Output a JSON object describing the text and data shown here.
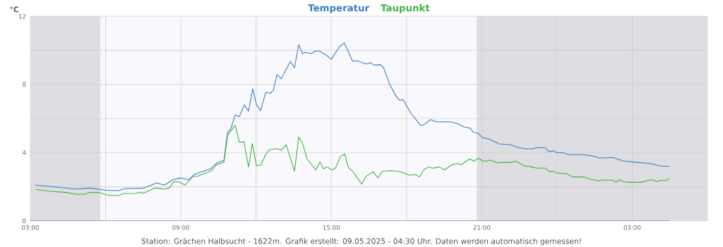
{
  "chart_data": {
    "type": "line",
    "ylabel": "°C",
    "xlim": [
      "2025-05-08T03:00",
      "2025-05-09T06:00"
    ],
    "ylim": [
      0,
      12
    ],
    "xticks": [
      {
        "value": "2025-05-08T03:00",
        "label": "03:00"
      },
      {
        "value": "2025-05-08T06:00",
        "label": null
      },
      {
        "value": "2025-05-08T09:00",
        "label": "09:00"
      },
      {
        "value": "2025-05-08T12:00",
        "label": null
      },
      {
        "value": "2025-05-08T15:00",
        "label": "15:00"
      },
      {
        "value": "2025-05-08T18:00",
        "label": null
      },
      {
        "value": "2025-05-08T21:00",
        "label": "21:00"
      },
      {
        "value": "2025-05-09T00:00",
        "label": null
      },
      {
        "value": "2025-05-09T03:00",
        "label": "03:00"
      }
    ],
    "yticks": [
      0,
      {
        "value": 2,
        "label": null
      },
      4,
      {
        "value": 6,
        "label": null
      },
      8,
      {
        "value": 10,
        "label": null
      },
      12
    ],
    "grid": true,
    "legend": "top",
    "marker": "none",
    "line_style": "solid",
    "bands": [
      {
        "axis": "x",
        "from": "2025-05-08T03:00",
        "to": "2025-05-08T05:48",
        "color": "#dedee2"
      },
      {
        "axis": "x",
        "from": "2025-05-08T05:48",
        "to": "2025-05-08T20:48",
        "color": "#f9f8fd"
      },
      {
        "axis": "x",
        "from": "2025-05-08T20:48",
        "to": "2025-05-09T06:00",
        "color": "#dedee2"
      }
    ],
    "series": [
      {
        "name": "Temperatur",
        "color": "#3a7ebf",
        "x": [
          "2025-05-08T03:12",
          "2025-05-08T04:02",
          "2025-05-08T04:48",
          "2025-05-08T05:22",
          "2025-05-08T06:06",
          "2025-05-08T06:31",
          "2025-05-08T06:46",
          "2025-05-08T07:31",
          "2025-05-08T08:02",
          "2025-05-08T08:21",
          "2025-05-08T08:41",
          "2025-05-08T09:00",
          "2025-05-08T09:19",
          "2025-05-08T09:32",
          "2025-05-08T10:11",
          "2025-05-08T10:26",
          "2025-05-08T10:43",
          "2025-05-08T10:52",
          "2025-05-08T11:00",
          "2025-05-08T11:10",
          "2025-05-08T11:20",
          "2025-05-08T11:32",
          "2025-05-08T11:42",
          "2025-05-08T11:52",
          "2025-05-08T12:01",
          "2025-05-08T12:11",
          "2025-05-08T12:23",
          "2025-05-08T12:33",
          "2025-05-08T12:41",
          "2025-05-08T12:50",
          "2025-05-08T13:00",
          "2025-05-08T13:22",
          "2025-05-08T13:32",
          "2025-05-08T13:42",
          "2025-05-08T13:51",
          "2025-05-08T13:59",
          "2025-05-08T14:11",
          "2025-05-08T14:23",
          "2025-05-08T14:31",
          "2025-05-08T14:50",
          "2025-05-08T15:00",
          "2025-05-08T15:20",
          "2025-05-08T15:31",
          "2025-05-08T15:51",
          "2025-05-08T16:01",
          "2025-05-08T16:23",
          "2025-05-08T16:33",
          "2025-05-08T16:43",
          "2025-05-08T16:58",
          "2025-05-08T17:05",
          "2025-05-08T17:20",
          "2025-05-08T17:34",
          "2025-05-08T17:42",
          "2025-05-08T17:52",
          "2025-05-08T18:11",
          "2025-05-08T18:33",
          "2025-05-08T18:40",
          "2025-05-08T18:58",
          "2025-05-08T19:12",
          "2025-05-08T19:46",
          "2025-05-08T20:01",
          "2025-05-08T20:18",
          "2025-05-08T20:33",
          "2025-05-08T20:40",
          "2025-05-08T20:50",
          "2025-05-08T21:02",
          "2025-05-08T21:19",
          "2025-05-08T21:42",
          "2025-05-08T22:08",
          "2025-05-08T22:29",
          "2025-05-08T22:46",
          "2025-05-08T23:04",
          "2025-05-08T23:08",
          "2025-05-08T23:32",
          "2025-05-08T23:41",
          "2025-05-08T23:51",
          "2025-05-08T23:59",
          "2025-05-09T00:14",
          "2025-05-09T00:28",
          "2025-05-09T01:05",
          "2025-05-09T01:31",
          "2025-05-09T01:41",
          "2025-05-09T02:14",
          "2025-05-09T02:38",
          "2025-05-09T03:12",
          "2025-05-09T03:42",
          "2025-05-09T04:11",
          "2025-05-09T04:29"
        ],
        "values": [
          2.1,
          1.99,
          1.86,
          1.93,
          1.78,
          1.78,
          1.89,
          1.92,
          2.22,
          2.1,
          2.41,
          2.52,
          2.4,
          2.72,
          3.05,
          3.4,
          3.55,
          5.2,
          5.43,
          6.22,
          6.12,
          6.81,
          6.43,
          7.75,
          6.81,
          6.47,
          7.54,
          7.48,
          7.64,
          8.58,
          8.33,
          9.34,
          8.98,
          10.33,
          9.81,
          9.88,
          9.81,
          9.96,
          9.96,
          9.68,
          9.47,
          10.22,
          10.44,
          9.36,
          9.39,
          9.2,
          9.27,
          9.13,
          9.16,
          8.98,
          7.99,
          7.36,
          7.09,
          7.1,
          6.3,
          5.61,
          5.61,
          5.94,
          5.8,
          5.8,
          5.71,
          5.5,
          5.43,
          5.18,
          5.16,
          4.88,
          4.79,
          4.51,
          4.47,
          4.29,
          4.22,
          4.22,
          4.29,
          4.29,
          4.05,
          4.12,
          4.0,
          3.99,
          3.88,
          3.88,
          3.78,
          3.68,
          3.71,
          3.52,
          3.43,
          3.36,
          3.21,
          3.21
        ]
      },
      {
        "name": "Taupunkt",
        "color": "#3cb43c",
        "x": [
          "2025-05-08T03:12",
          "2025-05-08T03:46",
          "2025-05-08T04:25",
          "2025-05-08T04:48",
          "2025-05-08T05:10",
          "2025-05-08T05:22",
          "2025-05-08T05:44",
          "2025-05-08T06:09",
          "2025-05-08T06:31",
          "2025-05-08T06:43",
          "2025-05-08T07:12",
          "2025-05-08T07:22",
          "2025-05-08T07:31",
          "2025-05-08T07:59",
          "2025-05-08T08:21",
          "2025-05-08T08:33",
          "2025-05-08T08:43",
          "2025-05-08T08:55",
          "2025-05-08T09:10",
          "2025-05-08T09:29",
          "2025-05-08T09:41",
          "2025-05-08T10:14",
          "2025-05-08T10:26",
          "2025-05-08T10:43",
          "2025-05-08T10:52",
          "2025-05-08T11:10",
          "2025-05-08T11:20",
          "2025-05-08T11:31",
          "2025-05-08T11:42",
          "2025-05-08T11:51",
          "2025-05-08T12:01",
          "2025-05-08T12:11",
          "2025-05-08T12:25",
          "2025-05-08T12:33",
          "2025-05-08T12:50",
          "2025-05-08T13:00",
          "2025-05-08T13:12",
          "2025-05-08T13:32",
          "2025-05-08T13:42",
          "2025-05-08T13:51",
          "2025-05-08T14:02",
          "2025-05-08T14:23",
          "2025-05-08T14:33",
          "2025-05-08T14:41",
          "2025-05-08T14:50",
          "2025-05-08T15:02",
          "2025-05-08T15:10",
          "2025-05-08T15:22",
          "2025-05-08T15:32",
          "2025-05-08T15:41",
          "2025-05-08T15:52",
          "2025-05-08T16:13",
          "2025-05-08T16:23",
          "2025-05-08T16:40",
          "2025-05-08T16:52",
          "2025-05-08T17:02",
          "2025-05-08T17:22",
          "2025-05-08T17:34",
          "2025-05-08T17:42",
          "2025-05-08T18:08",
          "2025-05-08T18:21",
          "2025-05-08T18:31",
          "2025-05-08T18:41",
          "2025-05-08T18:53",
          "2025-05-08T19:02",
          "2025-05-08T19:19",
          "2025-05-08T19:31",
          "2025-05-08T19:49",
          "2025-05-08T20:02",
          "2025-05-08T20:11",
          "2025-05-08T20:31",
          "2025-05-08T20:41",
          "2025-05-08T20:52",
          "2025-05-08T21:02",
          "2025-05-08T21:10",
          "2025-05-08T21:20",
          "2025-05-08T21:39",
          "2025-05-08T21:47",
          "2025-05-08T22:09",
          "2025-05-08T22:21",
          "2025-05-08T22:37",
          "2025-05-08T22:41",
          "2025-05-08T23:00",
          "2025-05-08T23:12",
          "2025-05-08T23:32",
          "2025-05-08T23:42",
          "2025-05-08T23:51",
          "2025-05-08T23:59",
          "2025-05-09T00:23",
          "2025-05-09T00:37",
          "2025-05-09T01:05",
          "2025-05-09T01:22",
          "2025-05-09T01:39",
          "2025-05-09T01:49",
          "2025-05-09T02:13",
          "2025-05-09T02:21",
          "2025-05-09T02:29",
          "2025-05-09T02:38",
          "2025-05-09T02:55",
          "2025-05-09T03:20",
          "2025-05-09T03:42",
          "2025-05-09T03:51",
          "2025-05-09T03:59",
          "2025-05-09T04:08",
          "2025-05-09T04:21",
          "2025-05-09T04:29"
        ],
        "values": [
          1.85,
          1.74,
          1.67,
          1.56,
          1.56,
          1.67,
          1.67,
          1.49,
          1.49,
          1.6,
          1.61,
          1.68,
          1.63,
          1.93,
          1.86,
          1.94,
          2.3,
          2.29,
          2.1,
          2.61,
          2.63,
          2.95,
          3.3,
          3.43,
          5.02,
          5.61,
          4.61,
          4.65,
          3.16,
          4.54,
          3.23,
          3.27,
          3.98,
          4.19,
          4.23,
          4.15,
          4.46,
          2.91,
          4.92,
          4.56,
          3.64,
          2.99,
          3.46,
          3.05,
          3.16,
          2.98,
          3.09,
          3.78,
          3.92,
          3.13,
          2.88,
          2.15,
          2.61,
          2.88,
          2.51,
          2.91,
          2.95,
          2.92,
          2.91,
          2.68,
          2.72,
          2.58,
          2.99,
          3.16,
          3.09,
          3.16,
          2.99,
          3.3,
          3.36,
          3.3,
          3.64,
          3.5,
          3.67,
          3.53,
          3.5,
          3.57,
          3.39,
          3.43,
          3.43,
          3.5,
          3.3,
          3.23,
          3.16,
          3.09,
          3.09,
          2.88,
          2.92,
          2.8,
          2.77,
          2.58,
          2.57,
          2.43,
          2.35,
          2.39,
          2.39,
          2.26,
          2.41,
          2.3,
          2.26,
          2.26,
          2.39,
          2.39,
          2.3,
          2.39,
          2.36,
          2.52
        ]
      },
      {
        "color": "#3c6fd8",
        "x": [
          "2025-05-08T03:00",
          "2025-05-09T04:29"
        ],
        "values": [
          0,
          0
        ]
      }
    ],
    "annotations": [
      "Station: Grächen Halbsucht - 1622m. Grafik erstellt: 09.05.2025 - 04:30 Uhr. Daten werden automatisch gemessen!"
    ]
  }
}
